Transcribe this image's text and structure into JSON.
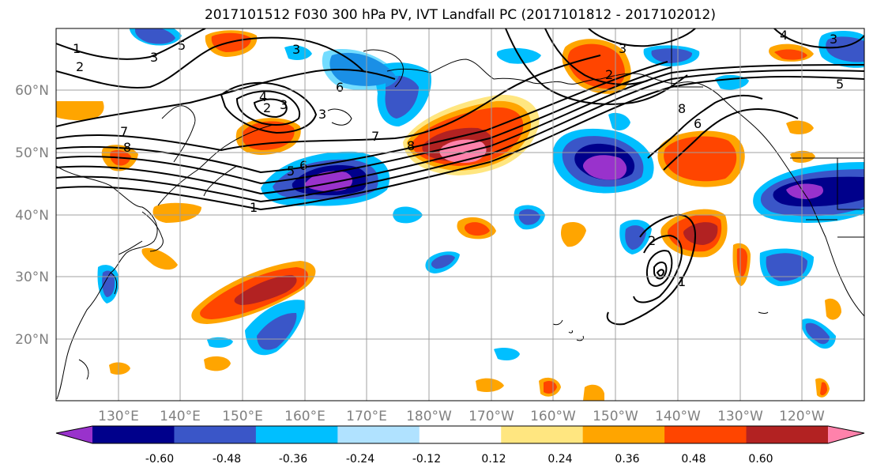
{
  "title": "2017101512 F030 300 hPa PV, IVT Landfall PC (2017101812 - 2017102012)",
  "map": {
    "projection": "equirectangular",
    "lon_range_east": [
      120,
      250
    ],
    "lat_range": [
      10,
      70
    ],
    "gridlines": true,
    "lat_ticks": [
      "20°N",
      "30°N",
      "40°N",
      "50°N",
      "60°N"
    ],
    "lon_ticks": [
      "130°E",
      "140°E",
      "150°E",
      "160°E",
      "170°E",
      "180°W",
      "170°W",
      "160°W",
      "150°W",
      "140°W",
      "130°W",
      "120°W"
    ],
    "contour_labels": [
      "1",
      "2",
      "3",
      "4",
      "5",
      "6",
      "7",
      "8"
    ]
  },
  "colorbar": {
    "colors": [
      "#9932cc",
      "#00008b",
      "#3a56c8",
      "#00bfff",
      "#b0e2ff",
      "#ffffff",
      "#ffe680",
      "#ffa500",
      "#ff4500",
      "#b22222",
      "#ff82ab"
    ],
    "tick_labels": [
      "-0.60",
      "-0.48",
      "-0.36",
      "-0.24",
      "-0.12",
      "0.12",
      "0.24",
      "0.36",
      "0.48",
      "0.60"
    ],
    "extend": "both"
  }
}
